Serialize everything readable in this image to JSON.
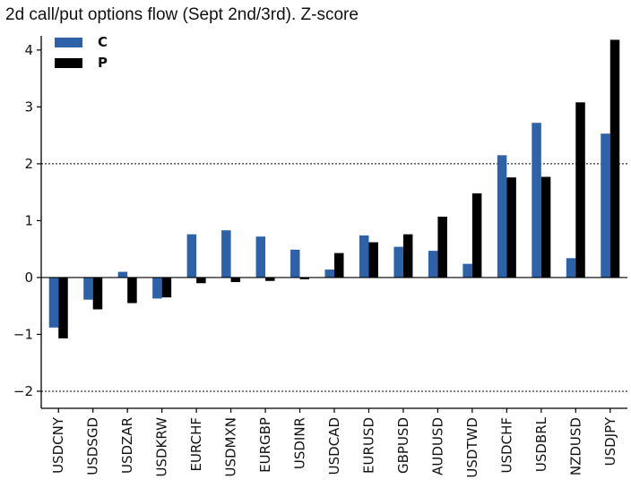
{
  "chart_data": {
    "type": "bar",
    "title": "2d call/put options flow (Sept 2nd/3rd). Z-score",
    "xlabel": "",
    "ylabel": "",
    "categories": [
      "USDCNY",
      "USDSGD",
      "USDZAR",
      "USDKRW",
      "EURCHF",
      "USDMXN",
      "EURGBP",
      "USDINR",
      "USDCAD",
      "EURUSD",
      "GBPUSD",
      "AUDUSD",
      "USDTWD",
      "USDCHF",
      "USDBRL",
      "NZDUSD",
      "USDJPY"
    ],
    "series": [
      {
        "name": "C",
        "color": "#2e62a8",
        "values": [
          -0.88,
          -0.39,
          0.1,
          -0.37,
          0.76,
          0.83,
          0.72,
          0.49,
          0.14,
          0.74,
          0.54,
          0.47,
          0.24,
          2.15,
          2.72,
          0.34,
          2.53
        ]
      },
      {
        "name": "P",
        "color": "#000000",
        "values": [
          -1.07,
          -0.56,
          -0.45,
          -0.35,
          -0.1,
          -0.08,
          -0.06,
          -0.03,
          0.43,
          0.62,
          0.76,
          1.07,
          1.48,
          1.76,
          1.77,
          3.08,
          4.18
        ]
      }
    ],
    "ylim": [
      -2.3,
      4.25
    ],
    "yticks": [
      -2,
      -1,
      0,
      1,
      2,
      3,
      4
    ],
    "ytick_labels": [
      "−2",
      "−1",
      "0",
      "1",
      "2",
      "3",
      "4"
    ],
    "reference_lines": [
      2,
      -2
    ],
    "zero_line": true,
    "grid": false,
    "legend_position": "top-left"
  }
}
